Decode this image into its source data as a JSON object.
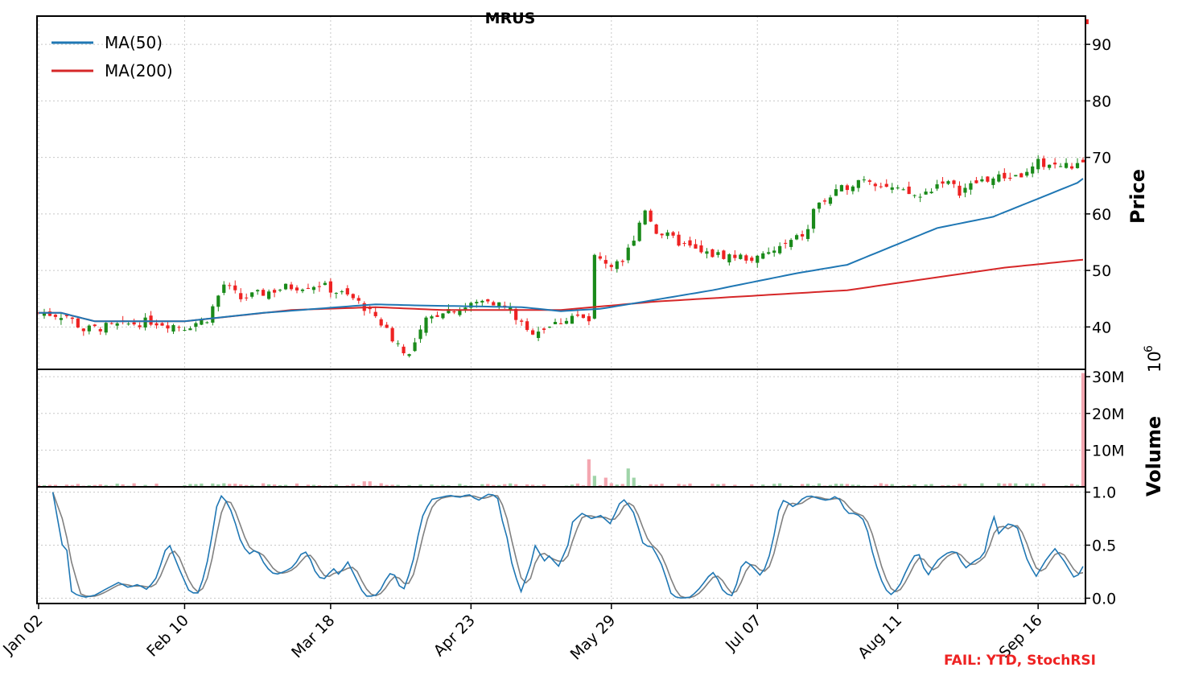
{
  "chart_data": {
    "type": "candlestick",
    "title": "MRUS",
    "colors": {
      "up": "#1a8a1a",
      "down": "#ee2222",
      "ma50": "#1f77b4",
      "ma200": "#d62728",
      "vol_up": "#9fd4a8",
      "vol_down": "#f4a6b0",
      "stoch_k": "#1f77b4",
      "stoch_d": "#808080"
    },
    "x_tick_labels": [
      "Jan 02",
      "Feb 10",
      "Mar 18",
      "Apr 23",
      "May 29",
      "Jul 07",
      "Aug 11",
      "Sep 16"
    ],
    "x_tick_indices": [
      0,
      26,
      52,
      77,
      102,
      128,
      153,
      178
    ],
    "n_sessions": 187,
    "price_panel": {
      "ylabel": "Price",
      "ylim": [
        32.5,
        95
      ],
      "yticks": [
        40,
        50,
        60,
        70,
        80,
        90
      ],
      "legend_position": "top-left",
      "legend": [
        {
          "label": "MA(50)",
          "color": "#1f77b4"
        },
        {
          "label": "MA(200)",
          "color": "#d62728"
        }
      ],
      "close_anchors": [
        [
          0,
          42.5
        ],
        [
          5,
          42
        ],
        [
          8,
          39.5
        ],
        [
          12,
          40
        ],
        [
          20,
          41
        ],
        [
          26,
          40
        ],
        [
          30,
          41.5
        ],
        [
          33,
          47.5
        ],
        [
          36,
          45
        ],
        [
          44,
          47
        ],
        [
          50,
          47.5
        ],
        [
          56,
          45
        ],
        [
          60,
          42
        ],
        [
          63,
          38
        ],
        [
          66,
          35
        ],
        [
          69,
          41
        ],
        [
          72,
          43
        ],
        [
          76,
          43.5
        ],
        [
          80,
          45
        ],
        [
          84,
          43
        ],
        [
          87,
          39
        ],
        [
          92,
          40.5
        ],
        [
          95,
          42
        ],
        [
          98,
          41
        ],
        [
          99,
          52
        ],
        [
          104,
          51
        ],
        [
          106,
          56
        ],
        [
          108,
          61
        ],
        [
          110,
          57
        ],
        [
          114,
          55
        ],
        [
          118,
          53
        ],
        [
          124,
          52.5
        ],
        [
          128,
          52
        ],
        [
          134,
          55
        ],
        [
          137,
          57
        ],
        [
          138,
          61
        ],
        [
          141,
          63
        ],
        [
          144,
          65
        ],
        [
          147,
          66.5
        ],
        [
          153,
          64
        ],
        [
          157,
          63
        ],
        [
          161,
          66
        ],
        [
          164,
          64
        ],
        [
          168,
          66
        ],
        [
          172,
          66.5
        ],
        [
          176,
          67
        ],
        [
          178,
          69
        ],
        [
          182,
          68.5
        ],
        [
          185,
          68.5
        ],
        [
          186,
          68.5
        ]
      ],
      "ma50_anchors": [
        [
          0,
          42.5
        ],
        [
          4,
          42.5
        ],
        [
          10,
          41
        ],
        [
          20,
          41
        ],
        [
          26,
          41
        ],
        [
          40,
          42.5
        ],
        [
          60,
          44
        ],
        [
          68,
          43.8
        ],
        [
          86,
          43.5
        ],
        [
          93,
          42.8
        ],
        [
          100,
          43.2
        ],
        [
          108,
          44.5
        ],
        [
          120,
          46.5
        ],
        [
          135,
          49.5
        ],
        [
          144,
          51
        ],
        [
          160,
          57.5
        ],
        [
          170,
          59.5
        ],
        [
          185,
          65.5
        ],
        [
          187,
          67
        ]
      ],
      "ma200_anchors": [
        [
          0,
          42.5
        ],
        [
          4,
          42.5
        ],
        [
          10,
          41
        ],
        [
          20,
          41
        ],
        [
          26,
          41
        ],
        [
          45,
          43
        ],
        [
          60,
          43.5
        ],
        [
          72,
          43
        ],
        [
          93,
          43
        ],
        [
          110,
          44.5
        ],
        [
          144,
          46.5
        ],
        [
          172,
          50.5
        ],
        [
          187,
          52
        ]
      ],
      "last_point": {
        "index": 186.7,
        "price": 94
      }
    },
    "volume_panel": {
      "ylabel": "Volume",
      "multiplier_label": "10",
      "multiplier_exponent": "6",
      "ylim": [
        0,
        32
      ],
      "ytick_values": [
        10,
        20,
        30
      ],
      "ytick_labels": [
        "10M",
        "20M",
        "30M"
      ],
      "spikes": [
        [
          98,
          7.5
        ],
        [
          99,
          3
        ],
        [
          101,
          2.5
        ],
        [
          105,
          5
        ],
        [
          106,
          2.5
        ],
        [
          58,
          1.5
        ],
        [
          59,
          1.5
        ],
        [
          186,
          31
        ]
      ]
    },
    "stoch_panel": {
      "ylim": [
        -0.05,
        1.05
      ],
      "yticks": [
        0.0,
        0.5,
        1.0
      ],
      "ytick_labels": [
        "0.0",
        "0.5",
        "1.0"
      ],
      "k_anchors": [
        [
          3,
          1.0
        ],
        [
          5,
          0.5
        ],
        [
          6,
          0.45
        ],
        [
          7,
          0.05
        ],
        [
          9,
          0.02
        ],
        [
          10,
          0.01
        ],
        [
          12,
          0.03
        ],
        [
          14,
          0.08
        ],
        [
          17,
          0.15
        ],
        [
          19,
          0.1
        ],
        [
          21,
          0.13
        ],
        [
          23,
          0.08
        ],
        [
          25,
          0.2
        ],
        [
          27,
          0.48
        ],
        [
          28,
          0.5
        ],
        [
          29,
          0.35
        ],
        [
          31,
          0.15
        ],
        [
          32,
          0.05
        ],
        [
          34,
          0.05
        ],
        [
          36,
          0.4
        ],
        [
          38,
          0.95
        ],
        [
          39,
          0.97
        ],
        [
          41,
          0.8
        ],
        [
          43,
          0.5
        ],
        [
          45,
          0.4
        ],
        [
          46,
          0.48
        ],
        [
          48,
          0.3
        ],
        [
          50,
          0.22
        ],
        [
          52,
          0.25
        ],
        [
          54,
          0.3
        ],
        [
          56,
          0.45
        ],
        [
          57,
          0.42
        ],
        [
          59,
          0.2
        ],
        [
          61,
          0.18
        ],
        [
          62,
          0.3
        ],
        [
          64,
          0.2
        ],
        [
          65,
          0.38
        ],
        [
          67,
          0.2
        ],
        [
          69,
          0.02
        ],
        [
          71,
          0.02
        ],
        [
          72,
          0.05
        ],
        [
          74,
          0.22
        ],
        [
          75,
          0.25
        ],
        [
          77,
          0.05
        ],
        [
          79,
          0.3
        ],
        [
          81,
          0.75
        ],
        [
          83,
          0.93
        ],
        [
          85,
          0.95
        ],
        [
          87,
          0.97
        ],
        [
          89,
          0.95
        ],
        [
          91,
          0.98
        ],
        [
          93,
          0.92
        ],
        [
          95,
          0.98
        ],
        [
          97,
          0.97
        ],
        [
          98,
          0.75
        ],
        [
          99,
          0.6
        ],
        [
          100,
          0.35
        ],
        [
          102,
          0.05
        ],
        [
          104,
          0.3
        ],
        [
          105,
          0.5
        ],
        [
          107,
          0.35
        ],
        [
          108,
          0.4
        ],
        [
          110,
          0.3
        ],
        [
          112,
          0.5
        ],
        [
          113,
          0.72
        ],
        [
          115,
          0.8
        ],
        [
          117,
          0.75
        ],
        [
          119,
          0.78
        ],
        [
          121,
          0.7
        ],
        [
          123,
          0.9
        ],
        [
          124,
          0.93
        ],
        [
          126,
          0.8
        ],
        [
          128,
          0.5
        ],
        [
          130,
          0.48
        ],
        [
          132,
          0.3
        ],
        [
          134,
          0.02
        ],
        [
          136,
          0.0
        ],
        [
          138,
          0.01
        ],
        [
          140,
          0.1
        ],
        [
          142,
          0.22
        ],
        [
          143,
          0.25
        ],
        [
          145,
          0.05
        ],
        [
          147,
          0.02
        ],
        [
          149,
          0.35
        ],
        [
          150,
          0.34
        ],
        [
          151,
          0.3
        ],
        [
          153,
          0.2
        ],
        [
          155,
          0.45
        ],
        [
          157,
          0.92
        ],
        [
          158,
          0.92
        ],
        [
          160,
          0.85
        ],
        [
          161,
          0.92
        ],
        [
          163,
          0.97
        ],
        [
          165,
          0.94
        ],
        [
          167,
          0.92
        ],
        [
          169,
          0.97
        ],
        [
          171,
          0.8
        ],
        [
          173,
          0.8
        ],
        [
          175,
          0.72
        ],
        [
          176,
          0.5
        ],
        [
          178,
          0.2
        ],
        [
          180,
          0.02
        ],
        [
          182,
          0.1
        ],
        [
          184,
          0.3
        ],
        [
          186,
          0.45
        ],
        [
          188,
          0.2
        ],
        [
          190,
          0.35
        ],
        [
          192,
          0.42
        ],
        [
          194,
          0.45
        ],
        [
          196,
          0.28
        ],
        [
          198,
          0.35
        ],
        [
          200,
          0.4
        ],
        [
          202,
          0.8
        ],
        [
          203,
          0.6
        ],
        [
          205,
          0.7
        ],
        [
          207,
          0.68
        ],
        [
          209,
          0.38
        ],
        [
          211,
          0.2
        ],
        [
          213,
          0.35
        ],
        [
          215,
          0.47
        ],
        [
          217,
          0.35
        ],
        [
          219,
          0.2
        ],
        [
          220,
          0.22
        ],
        [
          221,
          0.3
        ]
      ],
      "k_domain_max": 221
    },
    "annotation": "FAIL: YTD, StochRSI"
  }
}
